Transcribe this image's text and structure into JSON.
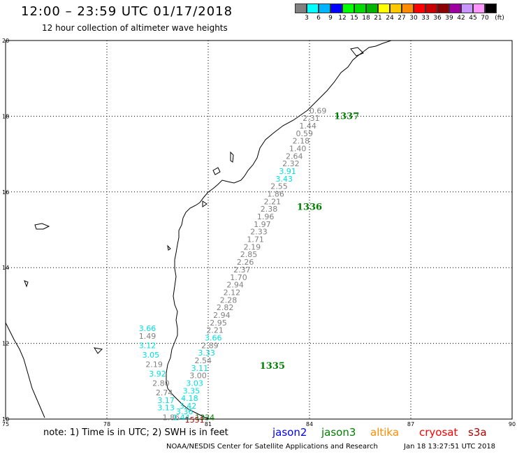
{
  "header": {
    "title": "12:00 – 23:59 UTC 01/17/2018",
    "subtitle": "12 hour collection of altimeter wave heights"
  },
  "color_scale": {
    "colors": [
      "#808080",
      "#00ffff",
      "#00b4ff",
      "#0000ff",
      "#00ff00",
      "#00dc00",
      "#00b400",
      "#ffff00",
      "#ffc800",
      "#ff8c00",
      "#ff0000",
      "#c80000",
      "#8b0000",
      "#a000a0",
      "#c896ff",
      "#ff96ff",
      "#000000"
    ],
    "labels": [
      "3",
      "6",
      "9",
      "12",
      "15",
      "18",
      "21",
      "24",
      "27",
      "30",
      "33",
      "36",
      "39",
      "42",
      "45",
      "70"
    ],
    "unit": "(ft)"
  },
  "map": {
    "lon_ticks": [
      "75",
      "78",
      "81",
      "84",
      "87",
      "90"
    ],
    "lat_ticks": [
      "20",
      "18",
      "16",
      "14",
      "12",
      "10"
    ],
    "coast_color": "#000000",
    "grid_color": "#000000"
  },
  "tracks": [
    {
      "satellite": "jason3",
      "color": "#008000",
      "labels": [
        {
          "text": "1337",
          "lon": 85.1,
          "lat": 18.0
        },
        {
          "text": "1336",
          "lon": 84.0,
          "lat": 15.6
        },
        {
          "text": "1335",
          "lon": 82.9,
          "lat": 11.4
        }
      ]
    }
  ],
  "obs": [
    {
      "v": "0.69",
      "lon": 84.25,
      "lat": 18.15,
      "c": "#808080"
    },
    {
      "v": "2.31",
      "lon": 84.05,
      "lat": 17.95,
      "c": "#808080"
    },
    {
      "v": "1.44",
      "lon": 83.95,
      "lat": 17.75,
      "c": "#808080"
    },
    {
      "v": "0.59",
      "lon": 83.85,
      "lat": 17.55,
      "c": "#808080"
    },
    {
      "v": "2.18",
      "lon": 83.75,
      "lat": 17.35,
      "c": "#808080"
    },
    {
      "v": "1.40",
      "lon": 83.65,
      "lat": 17.15,
      "c": "#808080"
    },
    {
      "v": "2.64",
      "lon": 83.55,
      "lat": 16.95,
      "c": "#808080"
    },
    {
      "v": "2.32",
      "lon": 83.45,
      "lat": 16.75,
      "c": "#808080"
    },
    {
      "v": "3.91",
      "lon": 83.35,
      "lat": 16.55,
      "c": "#00e0e0"
    },
    {
      "v": "3.43",
      "lon": 83.25,
      "lat": 16.35,
      "c": "#00e0e0"
    },
    {
      "v": "2.55",
      "lon": 83.1,
      "lat": 16.15,
      "c": "#808080"
    },
    {
      "v": "1.86",
      "lon": 83.0,
      "lat": 15.95,
      "c": "#808080"
    },
    {
      "v": "2.21",
      "lon": 82.9,
      "lat": 15.75,
      "c": "#808080"
    },
    {
      "v": "2.38",
      "lon": 82.8,
      "lat": 15.55,
      "c": "#808080"
    },
    {
      "v": "1.96",
      "lon": 82.7,
      "lat": 15.35,
      "c": "#808080"
    },
    {
      "v": "1.97",
      "lon": 82.6,
      "lat": 15.15,
      "c": "#808080"
    },
    {
      "v": "2.33",
      "lon": 82.5,
      "lat": 14.95,
      "c": "#808080"
    },
    {
      "v": "1.71",
      "lon": 82.4,
      "lat": 14.75,
      "c": "#808080"
    },
    {
      "v": "2.19",
      "lon": 82.3,
      "lat": 14.55,
      "c": "#808080"
    },
    {
      "v": "2.85",
      "lon": 82.2,
      "lat": 14.35,
      "c": "#808080"
    },
    {
      "v": "2.26",
      "lon": 82.1,
      "lat": 14.15,
      "c": "#808080"
    },
    {
      "v": "2.37",
      "lon": 82.0,
      "lat": 13.95,
      "c": "#808080"
    },
    {
      "v": "1.70",
      "lon": 81.9,
      "lat": 13.75,
      "c": "#808080"
    },
    {
      "v": "2.94",
      "lon": 81.8,
      "lat": 13.55,
      "c": "#808080"
    },
    {
      "v": "2.12",
      "lon": 81.7,
      "lat": 13.35,
      "c": "#808080"
    },
    {
      "v": "2.28",
      "lon": 81.6,
      "lat": 13.15,
      "c": "#808080"
    },
    {
      "v": "2.82",
      "lon": 81.5,
      "lat": 12.95,
      "c": "#808080"
    },
    {
      "v": "2.94",
      "lon": 81.4,
      "lat": 12.75,
      "c": "#808080"
    },
    {
      "v": "2.95",
      "lon": 81.3,
      "lat": 12.55,
      "c": "#808080"
    },
    {
      "v": "2.21",
      "lon": 81.2,
      "lat": 12.35,
      "c": "#808080"
    },
    {
      "v": "3.66",
      "lon": 81.15,
      "lat": 12.15,
      "c": "#00e0e0"
    },
    {
      "v": "2.89",
      "lon": 81.05,
      "lat": 11.95,
      "c": "#808080"
    },
    {
      "v": "3.33",
      "lon": 80.95,
      "lat": 11.75,
      "c": "#00e0e0"
    },
    {
      "v": "2.54",
      "lon": 80.85,
      "lat": 11.55,
      "c": "#808080"
    },
    {
      "v": "3.11",
      "lon": 80.75,
      "lat": 11.35,
      "c": "#00e0e0"
    },
    {
      "v": "3.00",
      "lon": 80.7,
      "lat": 11.15,
      "c": "#808080"
    },
    {
      "v": "3.03",
      "lon": 80.6,
      "lat": 10.95,
      "c": "#00e0e0"
    },
    {
      "v": "3.35",
      "lon": 80.5,
      "lat": 10.75,
      "c": "#00e0e0"
    },
    {
      "v": "4.18",
      "lon": 80.45,
      "lat": 10.55,
      "c": "#00e0e0"
    },
    {
      "v": "3.42",
      "lon": 80.4,
      "lat": 10.35,
      "c": "#00e0e0"
    },
    {
      "v": "3.36",
      "lon": 80.3,
      "lat": 10.2,
      "c": "#00e0e0"
    },
    {
      "v": "3.66",
      "lon": 79.2,
      "lat": 12.4,
      "c": "#00e0e0"
    },
    {
      "v": "1.49",
      "lon": 79.2,
      "lat": 12.2,
      "c": "#808080"
    },
    {
      "v": "3.12",
      "lon": 79.2,
      "lat": 11.95,
      "c": "#00e0e0"
    },
    {
      "v": "3.05",
      "lon": 79.3,
      "lat": 11.7,
      "c": "#00e0e0"
    },
    {
      "v": "2.19",
      "lon": 79.4,
      "lat": 11.45,
      "c": "#808080"
    },
    {
      "v": "3.92",
      "lon": 79.5,
      "lat": 11.2,
      "c": "#00e0e0"
    },
    {
      "v": "2.80",
      "lon": 79.6,
      "lat": 10.95,
      "c": "#808080"
    },
    {
      "v": "2.74",
      "lon": 79.7,
      "lat": 10.7,
      "c": "#808080"
    },
    {
      "v": "3.17",
      "lon": 79.75,
      "lat": 10.5,
      "c": "#00e0e0"
    },
    {
      "v": "3.13",
      "lon": 79.75,
      "lat": 10.3,
      "c": "#00e0e0"
    },
    {
      "v": "1.86",
      "lon": 79.9,
      "lat": 10.05,
      "c": "#808080"
    },
    {
      "v": "1.44",
      "lon": 80.2,
      "lat": 10.05,
      "c": "#00e0e0"
    },
    {
      "v": "1334",
      "lon": 80.9,
      "lat": 10.05,
      "c": "#008000"
    },
    {
      "v": "1551",
      "lon": 80.6,
      "lat": 9.98,
      "c": "#b00000"
    }
  ],
  "footer": {
    "note": "note: 1) Time is in UTC; 2) SWH is in feet",
    "credit": "NOAA/NESDIS Center for Satellite Applications and Research",
    "timestamp": "Jan 18 13:27:51 UTC 2018"
  },
  "legend": [
    {
      "name": "jason2",
      "color": "#0000ff"
    },
    {
      "name": "jason3",
      "color": "#008000"
    },
    {
      "name": "altika",
      "color": "#ff8c00"
    },
    {
      "name": "cryosat",
      "color": "#ff0000"
    },
    {
      "name": "s3a",
      "color": "#b00000"
    }
  ]
}
